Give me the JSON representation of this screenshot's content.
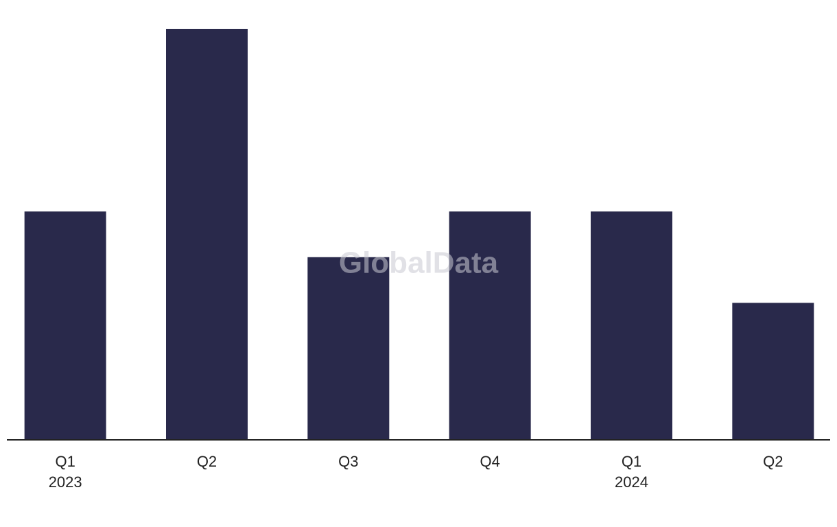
{
  "chart_data": {
    "type": "bar",
    "categories": [
      [
        "Q1",
        "2023"
      ],
      [
        "Q2"
      ],
      [
        "Q3"
      ],
      [
        "Q4"
      ],
      [
        "Q1",
        "2024"
      ],
      [
        "Q2"
      ]
    ],
    "values": [
      5,
      9,
      4,
      5,
      5,
      3
    ],
    "color": "#29294b",
    "ylim": [
      0,
      9
    ],
    "watermark": "GlobalData"
  }
}
